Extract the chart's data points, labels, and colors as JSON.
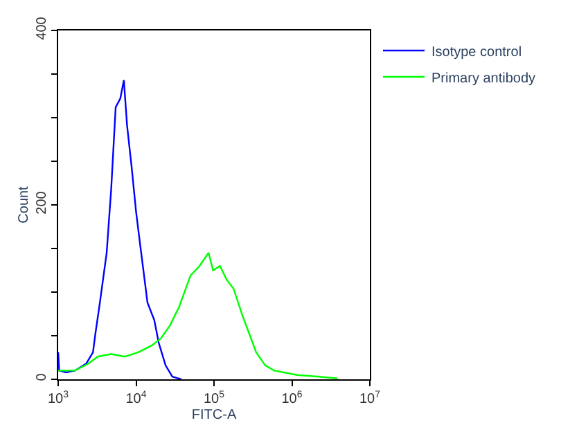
{
  "chart_data": {
    "type": "line",
    "xlabel": "FITC-A",
    "ylabel": "Count",
    "log": "x",
    "legend": "top right",
    "grid": false,
    "xlim": [
      1000,
      10000000
    ],
    "xticks": [
      {
        "value": 1000,
        "label": "10$^{3}$"
      },
      {
        "value": 10000,
        "label": "10$^{4}$"
      },
      {
        "value": 100000,
        "label": "10$^{5}$"
      },
      {
        "value": 1000000,
        "label": "10$^{6}$"
      },
      {
        "value": 10000000,
        "label": "10$^{7}$"
      }
    ],
    "ylim": [
      0,
      400
    ],
    "yticks": [
      0,
      {
        "value": 50,
        "label": null
      },
      {
        "value": 100,
        "label": null
      },
      {
        "value": 150,
        "label": null
      },
      200,
      {
        "value": 250,
        "label": null
      },
      {
        "value": 300,
        "label": null
      },
      {
        "value": 350,
        "label": null
      },
      400
    ],
    "series": [
      {
        "name": "Isotype control",
        "color": "#0000ff",
        "x": [
          1000,
          1030,
          1260,
          1640,
          2290,
          2800,
          3000,
          3430,
          4190,
          4790,
          5470,
          6270,
          6970,
          7660,
          8750,
          10000,
          11400,
          14000,
          17100,
          19500,
          23900,
          29200,
          38100
        ],
        "values": [
          31,
          10,
          8,
          10,
          18,
          31,
          52,
          88,
          145,
          218,
          312,
          322,
          343,
          291,
          244,
          192,
          151,
          88,
          68,
          42,
          16,
          3,
          0
        ]
      },
      {
        "name": "Primary antibody",
        "color": "#00ff00",
        "x": [
          1000,
          1640,
          2450,
          3210,
          4790,
          7160,
          10700,
          16000,
          20900,
          27300,
          35600,
          49900,
          65200,
          85100,
          97300,
          119000,
          146000,
          178000,
          232000,
          284000,
          347000,
          454000,
          593000,
          1160000,
          2260000,
          3860000
        ],
        "values": [
          10,
          10,
          18,
          26,
          29,
          26,
          31,
          39,
          47,
          62,
          83,
          119,
          130,
          145,
          125,
          130,
          114,
          104,
          73,
          52,
          31,
          16,
          10,
          5,
          3,
          1
        ]
      }
    ]
  }
}
